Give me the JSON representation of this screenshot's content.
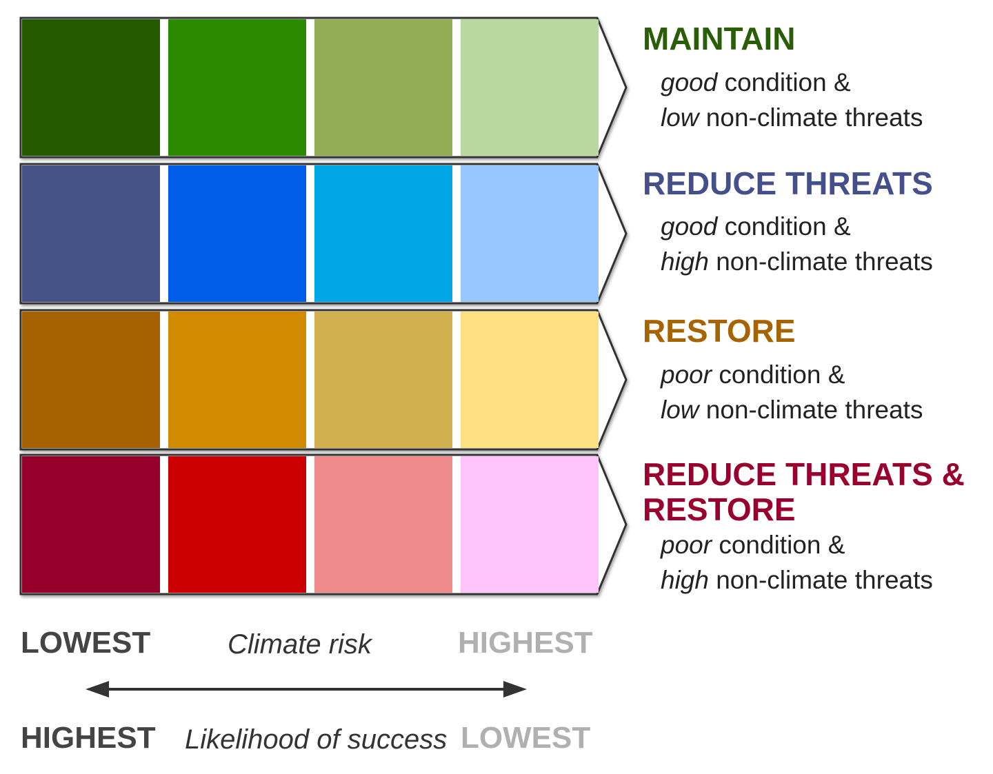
{
  "rows": [
    {
      "title": "MAINTAIN",
      "title_color": "#2a5d08",
      "condition_word": "good",
      "condition_rest": " condition &",
      "threat_word": "low",
      "threat_rest": " non-climate threats",
      "swatches": [
        "#245a00",
        "#2b8a00",
        "#93ad57",
        "#b8d7a1"
      ]
    },
    {
      "title": "REDUCE THREATS",
      "title_color": "#45508a",
      "condition_word": "good",
      "condition_rest": " condition &",
      "threat_word": "high",
      "threat_rest": " non-climate threats",
      "swatches": [
        "#455285",
        "#005de8",
        "#00a6e6",
        "#98c6fe"
      ]
    },
    {
      "title": "RESTORE",
      "title_color": "#a66300",
      "condition_word": "poor",
      "condition_rest": " condition &",
      "threat_word": "low",
      "threat_rest": " non-climate threats",
      "swatches": [
        "#a66200",
        "#d28b00",
        "#d3b04f",
        "#fde082"
      ]
    },
    {
      "title": "REDUCE THREATS & RESTORE",
      "title_line1": "REDUCE THREATS &",
      "title_line2": "RESTORE",
      "title_color": "#9a002e",
      "condition_word": "poor",
      "condition_rest": " condition &",
      "threat_word": "high",
      "threat_rest": " non-climate threats",
      "swatches": [
        "#98002c",
        "#cc0000",
        "#ef8a8a",
        "#ffc3fb"
      ]
    }
  ],
  "axis": {
    "climate_risk_label": "Climate risk",
    "climate_risk_left": "LOWEST",
    "climate_risk_right": "HIGHEST",
    "success_label": "Likelihood of success",
    "success_left": "HIGHEST",
    "success_right": "LOWEST",
    "left_color": "#444444",
    "right_color": "#b0b0b0"
  }
}
